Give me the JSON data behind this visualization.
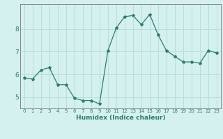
{
  "x": [
    0,
    1,
    2,
    3,
    4,
    5,
    6,
    7,
    8,
    9,
    10,
    11,
    12,
    13,
    14,
    15,
    16,
    17,
    18,
    19,
    20,
    21,
    22,
    23
  ],
  "y": [
    5.85,
    5.8,
    6.2,
    6.3,
    5.55,
    5.55,
    4.95,
    4.85,
    4.85,
    4.7,
    7.05,
    8.05,
    8.55,
    8.6,
    8.2,
    8.65,
    7.75,
    7.05,
    6.8,
    6.55,
    6.55,
    6.5,
    7.05,
    6.95
  ],
  "line_color": "#2e7d6e",
  "marker": "*",
  "marker_size": 3,
  "bg_color": "#d4f0ef",
  "grid_color": "#b8dedd",
  "axis_color": "#5a5a5a",
  "xlabel": "Humidex (Indice chaleur)",
  "ylim": [
    4.5,
    9.1
  ],
  "xlim": [
    -0.5,
    23.5
  ],
  "yticks": [
    5,
    6,
    7,
    8
  ],
  "ytick_labels": [
    "5",
    "6",
    "7",
    "8"
  ],
  "xtick_labels": [
    "0",
    "1",
    "2",
    "3",
    "4",
    "5",
    "6",
    "7",
    "8",
    "9",
    "10",
    "11",
    "12",
    "13",
    "14",
    "15",
    "16",
    "17",
    "18",
    "19",
    "20",
    "21",
    "22",
    "23"
  ],
  "font_color": "#2e7d6e"
}
